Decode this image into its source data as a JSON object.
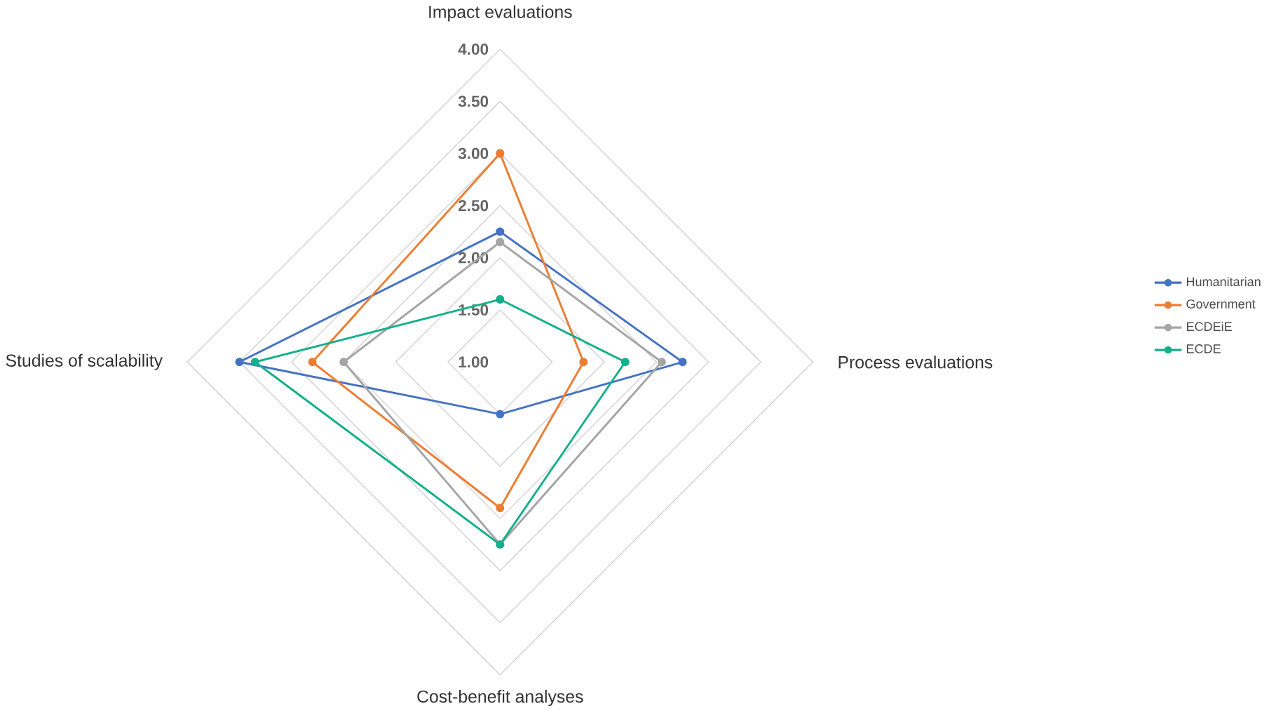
{
  "chart_data": {
    "type": "radar",
    "categories": [
      "Impact evaluations",
      "Process evaluations",
      "Cost-benefit analyses",
      "Studies of scalability"
    ],
    "series": [
      {
        "name": "Humanitarian",
        "color": "#4472c4",
        "values": [
          2.25,
          2.75,
          1.5,
          3.5
        ]
      },
      {
        "name": "Government",
        "color": "#ed7d31",
        "values": [
          3.0,
          1.8,
          2.4,
          2.8
        ]
      },
      {
        "name": "ECDEiE",
        "color": "#a5a5a5",
        "values": [
          2.15,
          2.55,
          2.75,
          2.5
        ]
      },
      {
        "name": "ECDE",
        "color": "#13b08a",
        "values": [
          1.6,
          2.2,
          2.75,
          3.35
        ]
      }
    ],
    "ylim": [
      1,
      4
    ],
    "yticks": [
      {
        "value": 1,
        "label": "1.00"
      },
      {
        "value": 1.5,
        "label": "1.50"
      },
      {
        "value": 2,
        "label": "2.00"
      },
      {
        "value": 2.5,
        "label": "2.50"
      },
      {
        "value": 3,
        "label": "3.00"
      },
      {
        "value": 3.5,
        "label": "3.50"
      },
      {
        "value": 4,
        "label": "4.00"
      }
    ],
    "grid": true,
    "legend": "right",
    "marker": "circle"
  }
}
